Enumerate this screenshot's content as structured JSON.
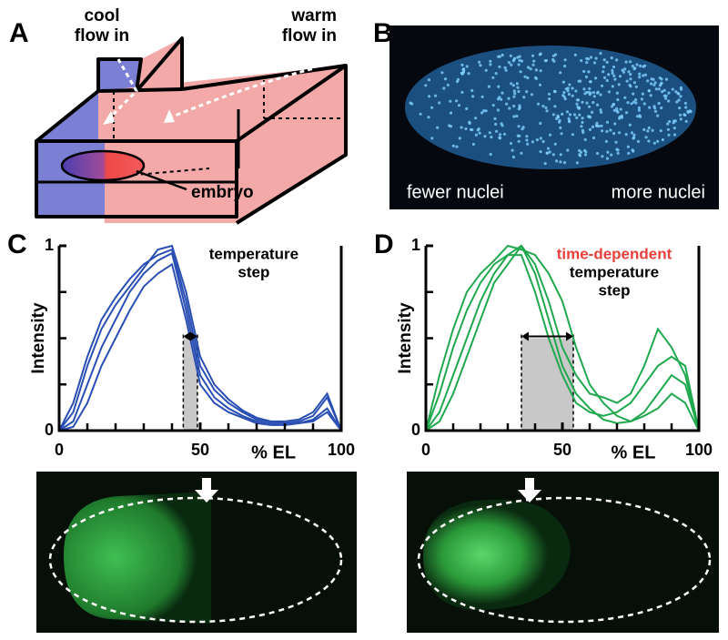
{
  "figure": {
    "panel_a": {
      "label": "A",
      "cool_flow": [
        "cool",
        "flow in"
      ],
      "warm_flow": [
        "warm",
        "flow in"
      ],
      "embryo_label": "embryo"
    },
    "panel_b": {
      "label": "B",
      "left_label": "fewer nuclei",
      "right_label": "more nuclei"
    }
  },
  "chart_data": [
    {
      "type": "line",
      "panel_label": "C",
      "annotation": [
        "temperature",
        "step"
      ],
      "xlabel": "% EL",
      "ylabel": "Intensity",
      "xlim": [
        0,
        100
      ],
      "ylim": [
        0,
        1
      ],
      "xticks": [
        0,
        50,
        100
      ],
      "yticks": [
        0,
        1
      ],
      "xminorticks": [
        10,
        20,
        30,
        40,
        60,
        70,
        80,
        90
      ],
      "yminorticks": [
        0.25,
        0.5,
        0.75
      ],
      "shaded_span": [
        44,
        49
      ],
      "x": [
        0,
        5,
        10,
        15,
        20,
        25,
        30,
        35,
        40,
        45,
        50,
        55,
        60,
        65,
        70,
        75,
        80,
        85,
        90,
        95,
        100
      ],
      "series": [
        {
          "color": "#2a4fb4",
          "values": [
            0,
            0.15,
            0.4,
            0.6,
            0.72,
            0.82,
            0.9,
            0.95,
            0.98,
            0.7,
            0.35,
            0.22,
            0.15,
            0.1,
            0.06,
            0.05,
            0.04,
            0.05,
            0.08,
            0.18,
            0
          ]
        },
        {
          "color": "#2a4fb4",
          "values": [
            0,
            0.05,
            0.25,
            0.45,
            0.6,
            0.75,
            0.85,
            0.92,
            0.96,
            0.65,
            0.3,
            0.18,
            0.12,
            0.08,
            0.05,
            0.04,
            0.03,
            0.04,
            0.06,
            0.12,
            0
          ]
        },
        {
          "color": "#2a4fb4",
          "values": [
            0,
            0.1,
            0.35,
            0.55,
            0.68,
            0.78,
            0.88,
            0.98,
            1,
            0.75,
            0.4,
            0.25,
            0.17,
            0.11,
            0.07,
            0.05,
            0.05,
            0.06,
            0.1,
            0.2,
            0
          ]
        },
        {
          "color": "#2a4fb4",
          "values": [
            0,
            0.02,
            0.15,
            0.35,
            0.5,
            0.65,
            0.78,
            0.85,
            0.9,
            0.6,
            0.25,
            0.15,
            0.1,
            0.07,
            0.04,
            0.03,
            0.03,
            0.04,
            0.05,
            0.1,
            0
          ]
        }
      ]
    },
    {
      "type": "line",
      "panel_label": "D",
      "annotation_highlight": "time-dependent",
      "highlight_color": "#e8403a",
      "annotation": [
        "temperature",
        "step"
      ],
      "xlabel": "% EL",
      "ylabel": "Intensity",
      "xlim": [
        0,
        100
      ],
      "ylim": [
        0,
        1
      ],
      "xticks": [
        0,
        50,
        100
      ],
      "yticks": [
        0,
        1
      ],
      "xminorticks": [
        10,
        20,
        30,
        40,
        60,
        70,
        80,
        90
      ],
      "yminorticks": [
        0.25,
        0.5,
        0.75
      ],
      "shaded_span": [
        35,
        54
      ],
      "x": [
        0,
        5,
        10,
        15,
        20,
        25,
        30,
        35,
        40,
        45,
        50,
        55,
        60,
        65,
        70,
        75,
        80,
        85,
        90,
        95,
        100
      ],
      "series": [
        {
          "color": "#1fa84e",
          "values": [
            0,
            0.2,
            0.45,
            0.65,
            0.8,
            0.9,
            0.95,
            1,
            0.9,
            0.7,
            0.45,
            0.3,
            0.2,
            0.18,
            0.15,
            0.2,
            0.35,
            0.55,
            0.45,
            0.3,
            0
          ]
        },
        {
          "color": "#1fa84e",
          "values": [
            0,
            0.1,
            0.3,
            0.5,
            0.7,
            0.85,
            0.95,
            0.95,
            0.75,
            0.5,
            0.3,
            0.15,
            0.1,
            0.08,
            0.1,
            0.15,
            0.25,
            0.35,
            0.4,
            0.35,
            0
          ]
        },
        {
          "color": "#1fa84e",
          "values": [
            0,
            0.3,
            0.55,
            0.75,
            0.85,
            0.92,
            1,
            0.98,
            0.95,
            0.85,
            0.7,
            0.45,
            0.25,
            0.15,
            0.08,
            0.05,
            0.1,
            0.2,
            0.3,
            0.25,
            0
          ]
        },
        {
          "color": "#1fa84e",
          "values": [
            0,
            0.05,
            0.2,
            0.4,
            0.6,
            0.8,
            0.9,
            1,
            0.85,
            0.6,
            0.35,
            0.2,
            0.12,
            0.06,
            0.04,
            0.05,
            0.08,
            0.12,
            0.2,
            0.15,
            0
          ]
        }
      ]
    }
  ]
}
